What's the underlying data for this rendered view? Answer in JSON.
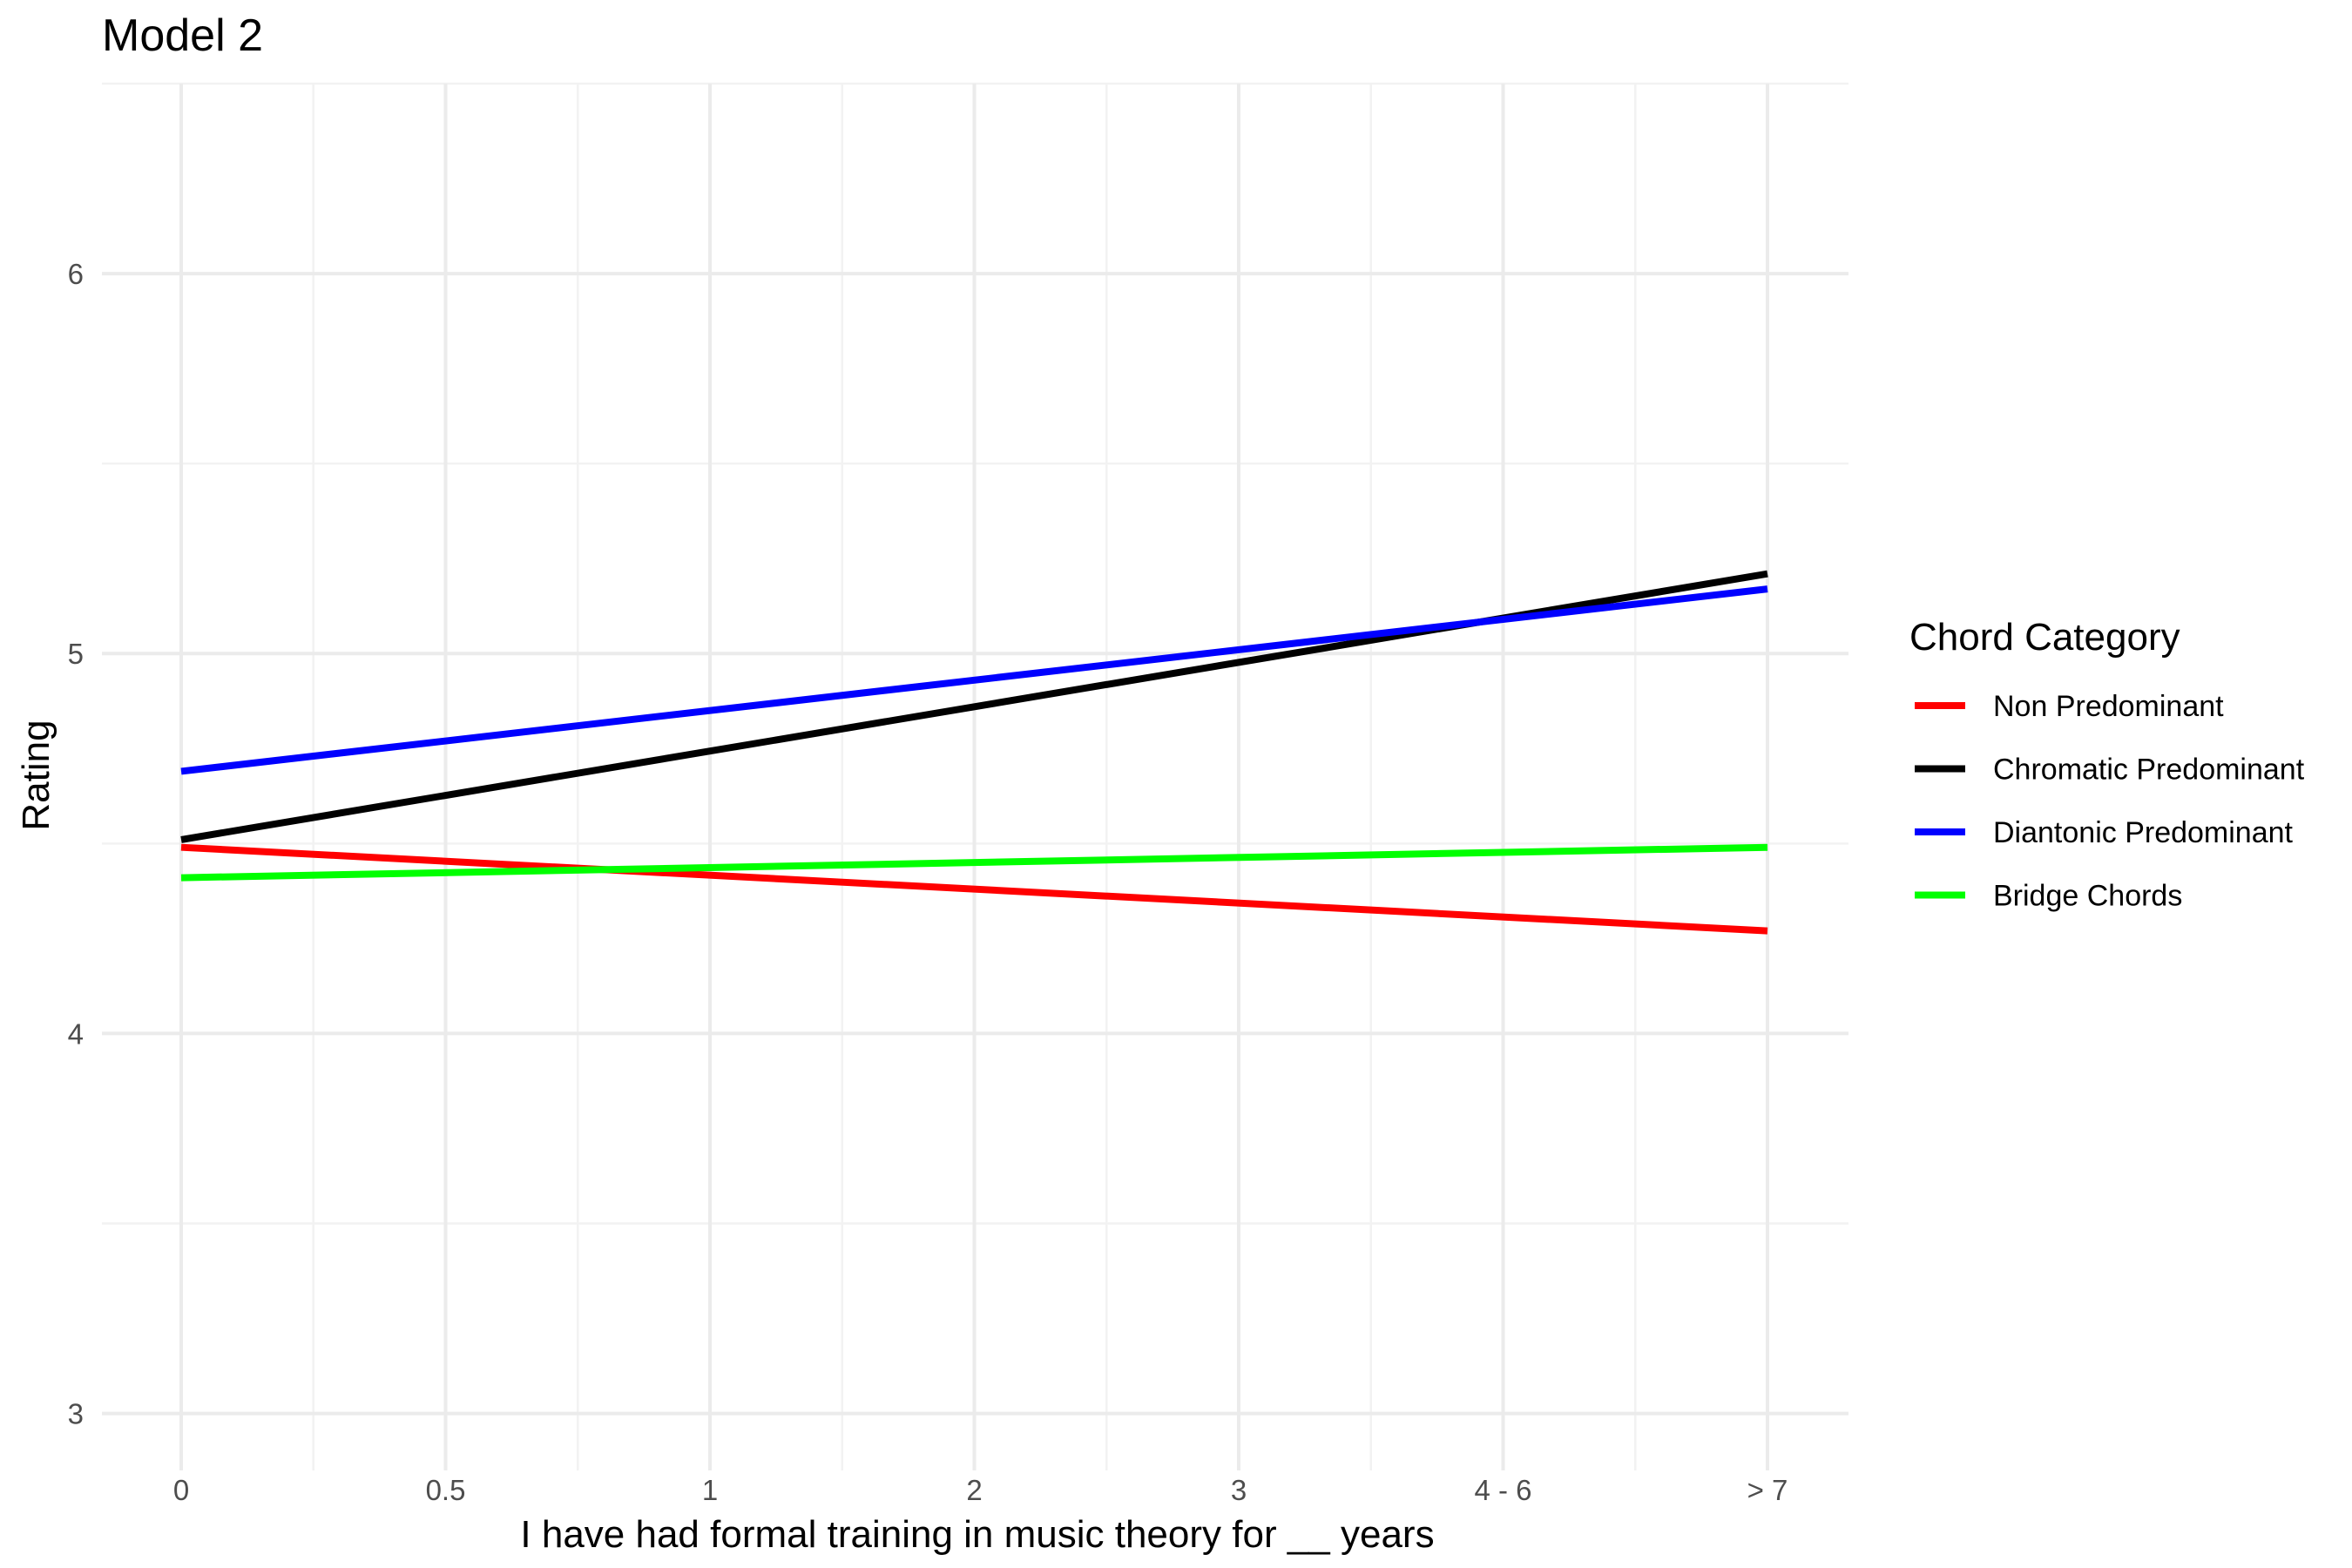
{
  "chart_data": {
    "type": "line",
    "title": "Model 2",
    "xlabel": "I have had formal training in music theory for __ years",
    "ylabel": "Rating",
    "categories": [
      "0",
      "0.5",
      "1",
      "2",
      "3",
      "4 - 6",
      "> 7"
    ],
    "y_ticks": [
      3,
      4,
      5,
      6
    ],
    "ylim": [
      2.85,
      6.5
    ],
    "grid": true,
    "legend": {
      "title": "Chord Category",
      "placement": "right"
    },
    "series": [
      {
        "name": "Non Predominant",
        "color": "#ff0000",
        "start": 4.49,
        "end": 4.27
      },
      {
        "name": "Chromatic Predominant",
        "color": "#000000",
        "start": 4.51,
        "end": 5.21
      },
      {
        "name": "Diantonic Predominant",
        "color": "#0000ff",
        "start": 4.69,
        "end": 5.17
      },
      {
        "name": "Bridge Chords",
        "color": "#00ff00",
        "start": 4.41,
        "end": 4.49
      }
    ]
  }
}
